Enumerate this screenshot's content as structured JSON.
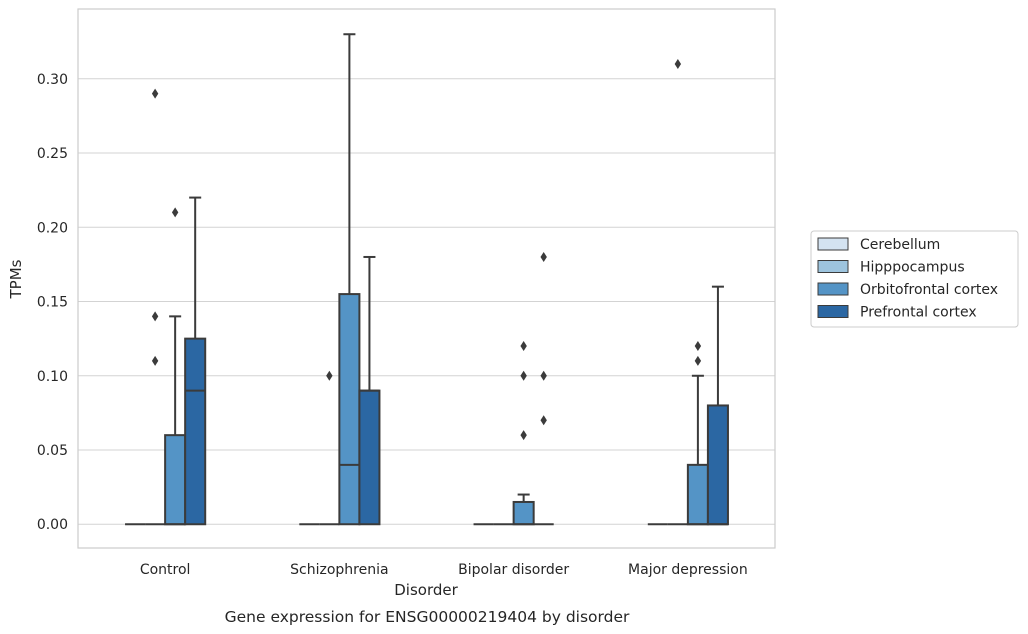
{
  "chart_data": {
    "type": "box",
    "caption": "Gene expression for ENSG00000219404 by disorder",
    "xlabel": "Disorder",
    "ylabel": "TPMs",
    "ylim": [
      -0.016,
      0.347
    ],
    "yticks": [
      "0.00",
      "0.05",
      "0.10",
      "0.15",
      "0.20",
      "0.25",
      "0.30"
    ],
    "grid": "horizontal",
    "legend_position": "right",
    "categories": [
      "Control",
      "Schizophrenia",
      "Bipolar disorder",
      "Major depression"
    ],
    "series": [
      {
        "name": "Cerebellum",
        "color": "#d4e3f1",
        "boxes": [
          {
            "q1": 0,
            "median": 0,
            "q3": 0,
            "whisker_low": 0,
            "whisker_high": 0,
            "outliers": []
          },
          {
            "q1": 0,
            "median": 0,
            "q3": 0,
            "whisker_low": 0,
            "whisker_high": 0,
            "outliers": []
          },
          {
            "q1": 0,
            "median": 0,
            "q3": 0,
            "whisker_low": 0,
            "whisker_high": 0,
            "outliers": []
          },
          {
            "q1": 0,
            "median": 0,
            "q3": 0,
            "whisker_low": 0,
            "whisker_high": 0,
            "outliers": []
          }
        ]
      },
      {
        "name": "Hipppocampus",
        "color": "#9dc4de",
        "boxes": [
          {
            "q1": 0,
            "median": 0,
            "q3": 0,
            "whisker_low": 0,
            "whisker_high": 0,
            "outliers": [
              0.29,
              0.14,
              0.11
            ]
          },
          {
            "q1": 0,
            "median": 0,
            "q3": 0,
            "whisker_low": 0,
            "whisker_high": 0,
            "outliers": [
              0.1
            ]
          },
          {
            "q1": 0,
            "median": 0,
            "q3": 0,
            "whisker_low": 0,
            "whisker_high": 0,
            "outliers": []
          },
          {
            "q1": 0,
            "median": 0,
            "q3": 0,
            "whisker_low": 0,
            "whisker_high": 0,
            "outliers": [
              0.31
            ]
          }
        ]
      },
      {
        "name": "Orbitofrontal cortex",
        "color": "#5494c6",
        "boxes": [
          {
            "q1": 0,
            "median": 0,
            "q3": 0.06,
            "whisker_low": 0,
            "whisker_high": 0.14,
            "outliers": [
              0.21
            ]
          },
          {
            "q1": 0,
            "median": 0.04,
            "q3": 0.155,
            "whisker_low": 0,
            "whisker_high": 0.33,
            "outliers": []
          },
          {
            "q1": 0,
            "median": 0,
            "q3": 0.015,
            "whisker_low": 0,
            "whisker_high": 0.02,
            "outliers": [
              0.12,
              0.1,
              0.06
            ]
          },
          {
            "q1": 0,
            "median": 0,
            "q3": 0.04,
            "whisker_low": 0,
            "whisker_high": 0.1,
            "outliers": [
              0.12,
              0.11
            ]
          }
        ]
      },
      {
        "name": "Prefrontal cortex",
        "color": "#2b67a3",
        "boxes": [
          {
            "q1": 0,
            "median": 0.09,
            "q3": 0.125,
            "whisker_low": 0,
            "whisker_high": 0.22,
            "outliers": []
          },
          {
            "q1": 0,
            "median": 0.09,
            "q3": 0.09,
            "whisker_low": 0,
            "whisker_high": 0.18,
            "outliers": []
          },
          {
            "q1": 0,
            "median": 0,
            "q3": 0,
            "whisker_low": 0,
            "whisker_high": 0,
            "outliers": [
              0.18,
              0.1,
              0.07
            ]
          },
          {
            "q1": 0,
            "median": 0,
            "q3": 0.08,
            "whisker_low": 0,
            "whisker_high": 0.16,
            "outliers": []
          }
        ]
      }
    ]
  }
}
